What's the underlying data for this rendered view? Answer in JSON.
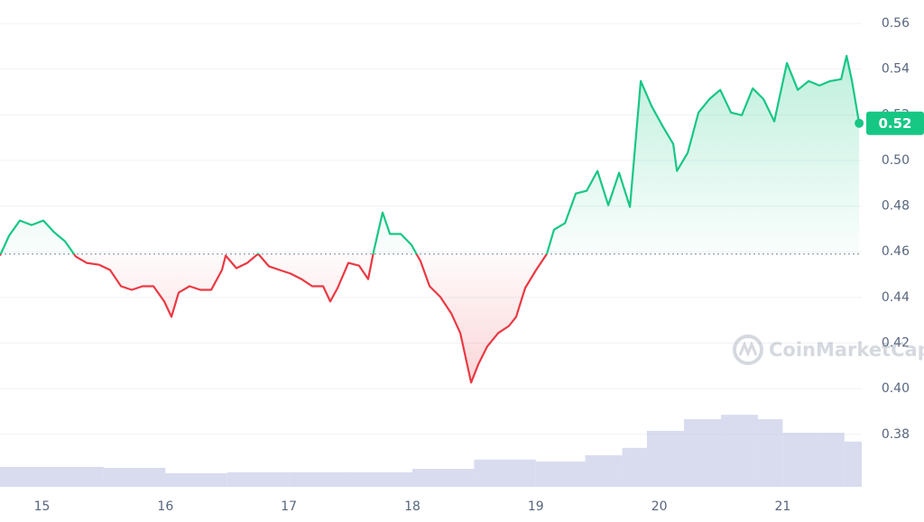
{
  "chart_data": {
    "type": "line",
    "x": [
      14.66,
      14.733,
      14.821,
      14.916,
      15.011,
      15.099,
      15.186,
      15.274,
      15.362,
      15.464,
      15.552,
      15.64,
      15.727,
      15.815,
      15.903,
      15.99,
      16.049,
      16.107,
      16.195,
      16.283,
      16.371,
      16.458,
      16.488,
      16.575,
      16.663,
      16.751,
      16.838,
      16.926,
      17.014,
      17.102,
      17.189,
      17.277,
      17.335,
      17.394,
      17.482,
      17.569,
      17.642,
      17.686,
      17.759,
      17.818,
      17.906,
      17.993,
      18.066,
      18.14,
      18.227,
      18.315,
      18.388,
      18.476,
      18.534,
      18.607,
      18.695,
      18.783,
      18.841,
      18.914,
      19.002,
      19.09,
      19.148,
      19.236,
      19.324,
      19.412,
      19.499,
      19.587,
      19.675,
      19.762,
      19.85,
      19.938,
      20.026,
      20.113,
      20.143,
      20.23,
      20.318,
      20.406,
      20.494,
      20.581,
      20.669,
      20.757,
      20.844,
      20.932,
      21.034,
      21.122,
      21.21,
      21.297,
      21.385,
      21.473,
      21.517,
      21.561,
      21.619
    ],
    "values": [
      0.4583,
      0.467,
      0.4737,
      0.4717,
      0.4737,
      0.4685,
      0.4646,
      0.4579,
      0.4551,
      0.4543,
      0.452,
      0.4449,
      0.4433,
      0.4449,
      0.4449,
      0.4382,
      0.4315,
      0.4421,
      0.4449,
      0.4433,
      0.4433,
      0.452,
      0.4583,
      0.4528,
      0.4551,
      0.4591,
      0.4536,
      0.452,
      0.4504,
      0.448,
      0.4449,
      0.4449,
      0.4382,
      0.4441,
      0.4551,
      0.4539,
      0.448,
      0.4599,
      0.4772,
      0.4678,
      0.4678,
      0.463,
      0.4559,
      0.4449,
      0.4402,
      0.433,
      0.4244,
      0.4027,
      0.4106,
      0.4185,
      0.4244,
      0.4275,
      0.4315,
      0.4441,
      0.452,
      0.4591,
      0.4697,
      0.4725,
      0.4855,
      0.4867,
      0.4954,
      0.4804,
      0.4946,
      0.4796,
      0.5348,
      0.5238,
      0.5151,
      0.5072,
      0.4954,
      0.5033,
      0.521,
      0.5269,
      0.5309,
      0.521,
      0.5198,
      0.5316,
      0.5269,
      0.5171,
      0.5427,
      0.5309,
      0.5348,
      0.5328,
      0.5348,
      0.5356,
      0.5458,
      0.5348,
      0.5163
    ],
    "up_color": "#16c784",
    "down_color": "#ea3943",
    "baseline": 0.459,
    "price_tag": {
      "value": 0.5163,
      "label": "0.52"
    },
    "xlim": [
      14.66,
      21.64
    ],
    "xticks": [
      15,
      16,
      17,
      18,
      19,
      20,
      21
    ],
    "ylim": [
      0.357,
      0.5703
    ],
    "yticks": [
      0.38,
      {
        "value": 0.4,
        "label": "0.40"
      },
      0.42,
      0.44,
      0.46,
      0.48,
      {
        "value": 0.5,
        "label": "0.50"
      },
      0.52,
      0.54,
      0.56
    ],
    "grid": true,
    "volume": {
      "color": "#c9cde8",
      "x": [
        14.66,
        15.5,
        16.0,
        16.5,
        17.0,
        17.5,
        18.0,
        18.5,
        19.0,
        19.4,
        19.7,
        19.9,
        20.2,
        20.5,
        20.8,
        21.0,
        21.3,
        21.5
      ],
      "values": [
        41,
        39,
        28,
        30,
        30,
        30,
        37,
        56,
        52,
        65,
        80,
        115,
        139,
        148,
        139,
        111,
        111,
        93
      ],
      "vlim": [
        0,
        1000
      ]
    },
    "watermark": "CoinMarketCap"
  }
}
